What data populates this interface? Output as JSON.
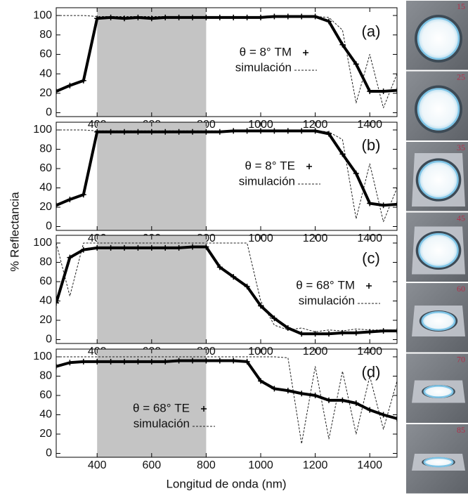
{
  "xlabel": "Longitud de onda (nm)",
  "ylabel": "% Reflectancia",
  "photos": {
    "labels": [
      "15",
      "25",
      "35",
      "45",
      "60",
      "70",
      "85"
    ]
  },
  "chart_data": [
    {
      "type": "line",
      "label": "(a)",
      "highlight_xrange": [
        400,
        800
      ],
      "x": [
        250,
        300,
        350,
        400,
        450,
        500,
        550,
        600,
        650,
        700,
        750,
        800,
        850,
        900,
        950,
        1000,
        1050,
        1100,
        1150,
        1200,
        1250,
        1300,
        1350,
        1400,
        1450,
        1500
      ],
      "series": [
        {
          "name": "θ = 8° TM",
          "color": "#000000",
          "style": "points-line",
          "values": [
            22,
            28,
            33,
            97,
            98,
            97,
            98,
            97,
            98,
            98,
            98,
            98,
            98,
            98,
            98,
            98,
            99,
            99,
            99,
            99,
            94,
            70,
            50,
            22,
            22,
            23
          ]
        },
        {
          "name": "simulación",
          "color": "#222222",
          "style": "dashed",
          "values": [
            100,
            100,
            100,
            99,
            99,
            99,
            99,
            99,
            99,
            99,
            99,
            99,
            99,
            99,
            99,
            99,
            99,
            99,
            99,
            99,
            98,
            85,
            10,
            60,
            5,
            40
          ]
        }
      ],
      "xlim": [
        250,
        1500
      ],
      "xticks": [
        400,
        600,
        800,
        1000,
        1200,
        1400
      ],
      "ylim": [
        -4,
        108
      ],
      "yticks": [
        0,
        20,
        40,
        60,
        80,
        100
      ]
    },
    {
      "type": "line",
      "label": "(b)",
      "highlight_xrange": [
        400,
        800
      ],
      "x": [
        250,
        300,
        350,
        400,
        450,
        500,
        550,
        600,
        650,
        700,
        750,
        800,
        850,
        900,
        950,
        1000,
        1050,
        1100,
        1150,
        1200,
        1250,
        1300,
        1350,
        1400,
        1450,
        1500
      ],
      "series": [
        {
          "name": "θ = 8° TE",
          "color": "#000000",
          "style": "points-line",
          "values": [
            22,
            28,
            33,
            98,
            98,
            98,
            98,
            98,
            98,
            98,
            98,
            98,
            98,
            99,
            99,
            99,
            99,
            99,
            99,
            99,
            96,
            75,
            55,
            24,
            22,
            23
          ]
        },
        {
          "name": "simulación",
          "color": "#222222",
          "style": "dashed",
          "values": [
            100,
            100,
            100,
            99,
            99,
            99,
            99,
            99,
            99,
            99,
            99,
            99,
            99,
            99,
            99,
            99,
            99,
            99,
            99,
            99,
            98,
            90,
            8,
            65,
            5,
            40
          ]
        }
      ],
      "xlim": [
        250,
        1500
      ],
      "xticks": [
        400,
        600,
        800,
        1000,
        1200,
        1400
      ],
      "ylim": [
        -4,
        108
      ],
      "yticks": [
        0,
        20,
        40,
        60,
        80,
        100
      ]
    },
    {
      "type": "line",
      "label": "(c)",
      "highlight_xrange": [
        400,
        800
      ],
      "x": [
        250,
        300,
        350,
        400,
        450,
        500,
        550,
        600,
        650,
        700,
        750,
        800,
        850,
        900,
        950,
        1000,
        1050,
        1100,
        1150,
        1200,
        1250,
        1300,
        1350,
        1400,
        1450,
        1500
      ],
      "series": [
        {
          "name": "θ = 68° TM",
          "color": "#000000",
          "style": "points-line",
          "values": [
            38,
            85,
            93,
            95,
            95,
            95,
            95,
            95,
            95,
            95,
            96,
            96,
            75,
            65,
            55,
            35,
            22,
            12,
            6,
            6,
            6,
            7,
            7,
            8,
            9,
            9
          ]
        },
        {
          "name": "simulación",
          "color": "#222222",
          "style": "dashed",
          "values": [
            100,
            45,
            100,
            100,
            100,
            100,
            100,
            100,
            100,
            100,
            100,
            100,
            100,
            100,
            100,
            40,
            15,
            10,
            12,
            8,
            10,
            9,
            11,
            10,
            10,
            10
          ]
        }
      ],
      "xlim": [
        250,
        1500
      ],
      "xticks": [
        400,
        600,
        800,
        1000,
        1200,
        1400
      ],
      "ylim": [
        -4,
        108
      ],
      "yticks": [
        0,
        20,
        40,
        60,
        80,
        100
      ]
    },
    {
      "type": "line",
      "label": "(d)",
      "highlight_xrange": [
        400,
        800
      ],
      "x": [
        250,
        300,
        350,
        400,
        450,
        500,
        550,
        600,
        650,
        700,
        750,
        800,
        850,
        900,
        950,
        1000,
        1050,
        1100,
        1150,
        1200,
        1250,
        1300,
        1350,
        1400,
        1450,
        1500
      ],
      "series": [
        {
          "name": "θ = 68° TE",
          "color": "#000000",
          "style": "points-line",
          "values": [
            90,
            94,
            95,
            95,
            95,
            95,
            95,
            95,
            95,
            96,
            96,
            96,
            96,
            96,
            95,
            75,
            67,
            65,
            62,
            60,
            55,
            55,
            52,
            45,
            40,
            36
          ]
        },
        {
          "name": "simulación",
          "color": "#222222",
          "style": "dashed",
          "values": [
            100,
            100,
            100,
            100,
            100,
            100,
            100,
            100,
            100,
            100,
            100,
            100,
            100,
            100,
            100,
            100,
            100,
            99,
            10,
            90,
            15,
            85,
            20,
            80,
            25,
            75
          ]
        }
      ],
      "xlim": [
        250,
        1500
      ],
      "xticks": [
        400,
        600,
        800,
        1000,
        1200,
        1400
      ],
      "ylim": [
        -4,
        108
      ],
      "yticks": [
        0,
        20,
        40,
        60,
        80,
        100
      ]
    }
  ]
}
